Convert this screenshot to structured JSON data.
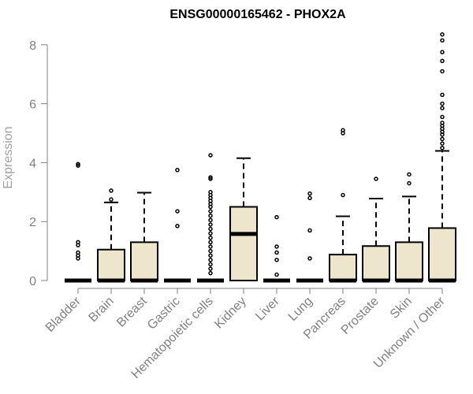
{
  "chart_data": {
    "type": "box",
    "title": "ENSG00000165462 - PHOX2A",
    "xlabel": "",
    "ylabel": "Expression",
    "ylim": [
      0,
      8.4
    ],
    "yticks": [
      0,
      2,
      4,
      6,
      8
    ],
    "colors": {
      "box_fill": "#ede6cc",
      "stroke": "#000000",
      "outlier": "#000000",
      "axis": "#808080"
    },
    "categories": [
      "Bladder",
      "Brain",
      "Breast",
      "Gastric",
      "Hematopoietic cells",
      "Kidney",
      "Liver",
      "Lung",
      "Pancreas",
      "Prostate",
      "Skin",
      "Unknown / Other"
    ],
    "boxes": [
      {
        "q1": 0,
        "median": 0,
        "q3": 0,
        "whisker_low": 0,
        "whisker_high": 0,
        "outliers": [
          0.75,
          0.85,
          0.95,
          1.2,
          1.3,
          3.9,
          3.95
        ]
      },
      {
        "q1": 0,
        "median": 0,
        "q3": 1.05,
        "whisker_low": 0,
        "whisker_high": 2.65,
        "outliers": [
          2.75,
          3.05
        ]
      },
      {
        "q1": 0,
        "median": 0,
        "q3": 1.3,
        "whisker_low": 0,
        "whisker_high": 2.98,
        "outliers": []
      },
      {
        "q1": 0,
        "median": 0,
        "q3": 0,
        "whisker_low": 0,
        "whisker_high": 0,
        "outliers": [
          1.85,
          2.35,
          3.75
        ]
      },
      {
        "q1": 0,
        "median": 0,
        "q3": 0,
        "whisker_low": 0,
        "whisker_high": 0,
        "outliers": [
          0.25,
          0.4,
          0.55,
          0.7,
          0.85,
          1.0,
          1.15,
          1.3,
          1.45,
          1.6,
          1.75,
          1.9,
          2.05,
          2.2,
          2.35,
          2.5,
          2.6,
          2.7,
          2.8,
          2.9,
          3.0,
          3.45,
          3.5,
          4.25
        ]
      },
      {
        "q1": 0,
        "median": 1.58,
        "q3": 2.5,
        "whisker_low": 0,
        "whisker_high": 4.15,
        "outliers": []
      },
      {
        "q1": 0,
        "median": 0,
        "q3": 0,
        "whisker_low": 0,
        "whisker_high": 0,
        "outliers": [
          0.2,
          0.7,
          0.95,
          1.15,
          2.15
        ]
      },
      {
        "q1": 0,
        "median": 0,
        "q3": 0,
        "whisker_low": 0,
        "whisker_high": 0,
        "outliers": [
          0.75,
          1.7,
          2.8,
          2.95
        ]
      },
      {
        "q1": 0,
        "median": 0,
        "q3": 0.88,
        "whisker_low": 0,
        "whisker_high": 2.18,
        "outliers": [
          2.9,
          5.0,
          5.1
        ]
      },
      {
        "q1": 0,
        "median": 0,
        "q3": 1.17,
        "whisker_low": 0,
        "whisker_high": 2.78,
        "outliers": [
          3.45
        ]
      },
      {
        "q1": 0,
        "median": 0,
        "q3": 1.3,
        "whisker_low": 0,
        "whisker_high": 2.85,
        "outliers": [
          3.3,
          3.6
        ]
      },
      {
        "q1": 0,
        "median": 0,
        "q3": 1.78,
        "whisker_low": 0,
        "whisker_high": 4.4,
        "outliers": [
          4.5,
          4.65,
          4.8,
          4.95,
          5.05,
          5.15,
          5.25,
          5.35,
          5.55,
          5.85,
          6.0,
          6.3,
          7.1,
          7.45,
          7.75,
          8.15,
          8.35
        ]
      }
    ]
  }
}
